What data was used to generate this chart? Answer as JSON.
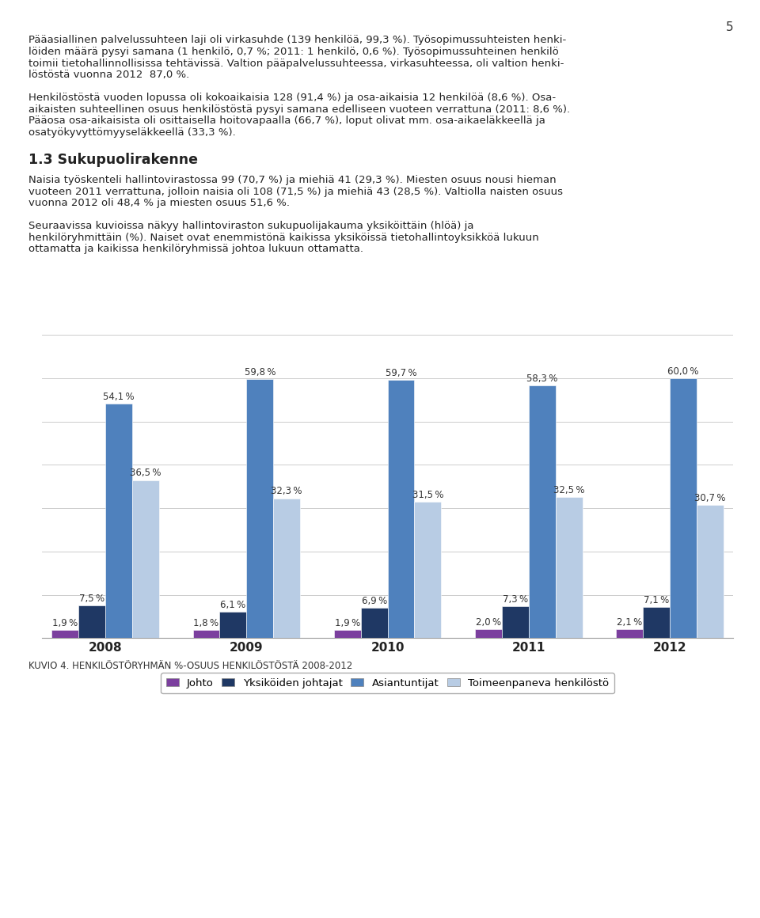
{
  "years": [
    "2008",
    "2009",
    "2010",
    "2011",
    "2012"
  ],
  "series": {
    "Johto": [
      1.9,
      1.8,
      1.9,
      2.0,
      2.1
    ],
    "Yksiköiden johtajat": [
      7.5,
      6.1,
      6.9,
      7.3,
      7.1
    ],
    "Asiantuntijat": [
      54.1,
      59.8,
      59.7,
      58.3,
      60.0
    ],
    "Toimeenpaneva henkilöstö": [
      36.5,
      32.3,
      31.5,
      32.5,
      30.7
    ]
  },
  "colors": {
    "Johto": "#7B3F9E",
    "Yksiköiden johtajat": "#1F3864",
    "Asiantuntijat": "#4F81BD",
    "Toimeenpaneva henkilöstö": "#B8CCE4"
  },
  "bar_width": 0.19,
  "ylim": [
    0,
    70
  ],
  "caption": "KUVIO 4. HENKILÖSTÖRYHMÄN %-OSUUS HENKILÖSTÖSTÄ 2008-2012",
  "page_number": "5",
  "para1_lines": [
    "Pääasiallinen palvelussuhteen laji oli virkasuhde (139 henkilöä, 99,3 %). Työsopimussuhteisten henki-",
    "löiden määrä pysyi samana (1 henkilö, 0,7 %; 2011: 1 henkilö, 0,6 %). Työsopimussuhteinen henkilö",
    "toimii tietohallinnollisissa tehtävissä. Valtion pääpalvelussuhteessa, virkasuhteessa, oli valtion henki-",
    "löstöstä vuonna 2012  87,0 %."
  ],
  "para2_lines": [
    "Henkilöstöstä vuoden lopussa oli kokoaikaisia 128 (91,4 %) ja osa-aikaisia 12 henkilöä (8,6 %). Osa-",
    "aikaisten suhteellinen osuus henkilöstöstä pysyi samana edelliseen vuoteen verrattuna (2011: 8,6 %).",
    "Pääosa osa-aikaisista oli osittaisella hoitovapaalla (66,7 %), loput olivat mm. osa-aikaeläkkeellä ja",
    "osatyökyvyttömyyseläkkeellä (33,3 %)."
  ],
  "section_header": "1.3 Sukupuolirakenne",
  "para3_lines": [
    "Naisia työskenteli hallintovirastossa 99 (70,7 %) ja miehiä 41 (29,3 %). Miesten osuus nousi hieman",
    "vuoteen 2011 verrattuna, jolloin naisia oli 108 (71,5 %) ja miehiä 43 (28,5 %). Valtiolla naisten osuus",
    "vuonna 2012 oli 48,4 % ja miesten osuus 51,6 %."
  ],
  "para4_lines": [
    "Seuraavissa kuvioissa näkyy hallintoviraston sukupuolijakauma yksiköittäin (hlöä) ja",
    "henkilöryhmittäin (%). Naiset ovat enemmistönä kaikissa yksiköissä tietohallintoyksikköä lukuun",
    "ottamatta ja kaikissa henkilöryhmissä johtoa lukuun ottamatta."
  ],
  "body_fontsize": 9.5,
  "header_fontsize": 12.5,
  "tick_fontsize": 11,
  "legend_fontsize": 9.5,
  "label_fontsize": 8.5
}
